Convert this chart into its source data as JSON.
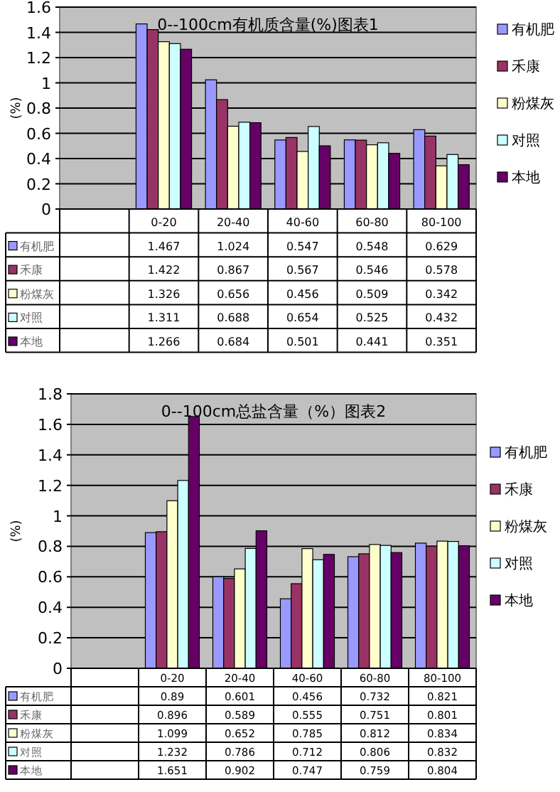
{
  "chart_data": [
    {
      "type": "bar",
      "title": "0--100cm有机质含量(%)图表1",
      "ylabel": "(%)",
      "categories": [
        null,
        "0-20",
        "20-40",
        "40-60",
        "60-80",
        "80-100"
      ],
      "series": [
        {
          "name": "有机肥",
          "color": "#9999ff",
          "values": [
            null,
            1.467,
            1.024,
            0.547,
            0.548,
            0.629
          ]
        },
        {
          "name": "禾康",
          "color": "#993366",
          "values": [
            null,
            1.422,
            0.867,
            0.567,
            0.546,
            0.578
          ]
        },
        {
          "name": "粉煤灰",
          "color": "#ffffcc",
          "values": [
            null,
            1.326,
            0.656,
            0.456,
            0.509,
            0.342
          ]
        },
        {
          "name": "对照",
          "color": "#ccffff",
          "values": [
            null,
            1.311,
            0.688,
            0.654,
            0.525,
            0.432
          ]
        },
        {
          "name": "本地",
          "color": "#660066",
          "values": [
            null,
            1.266,
            0.684,
            0.501,
            0.441,
            0.351
          ]
        }
      ],
      "ylim": [
        0,
        1.6
      ],
      "yticks": [
        0,
        0.2,
        0.4,
        0.6,
        0.8,
        1,
        1.2,
        1.4,
        1.6
      ],
      "grid": "y",
      "legend": "right",
      "data_labels": true
    },
    {
      "type": "bar",
      "title": "0--100cm总盐含量（%）图表2",
      "ylabel": "(%)",
      "categories": [
        null,
        "0-20",
        "20-40",
        "40-60",
        "60-80",
        "80-100"
      ],
      "series": [
        {
          "name": "有机肥",
          "color": "#9999ff",
          "values": [
            null,
            0.89,
            0.601,
            0.456,
            0.732,
            0.821
          ]
        },
        {
          "name": "禾康",
          "color": "#993366",
          "values": [
            null,
            0.896,
            0.589,
            0.555,
            0.751,
            0.801
          ]
        },
        {
          "name": "粉煤灰",
          "color": "#ffffcc",
          "values": [
            null,
            1.099,
            0.652,
            0.785,
            0.812,
            0.834
          ]
        },
        {
          "name": "对照",
          "color": "#ccffff",
          "values": [
            null,
            1.232,
            0.786,
            0.712,
            0.806,
            0.832
          ]
        },
        {
          "name": "本地",
          "color": "#660066",
          "values": [
            null,
            1.651,
            0.902,
            0.747,
            0.759,
            0.804
          ]
        }
      ],
      "ylim": [
        0,
        1.8
      ],
      "yticks": [
        0,
        0.2,
        0.4,
        0.6,
        0.8,
        1,
        1.2,
        1.4,
        1.6,
        1.8
      ],
      "grid": "y",
      "legend": "right",
      "data_labels": true
    }
  ]
}
